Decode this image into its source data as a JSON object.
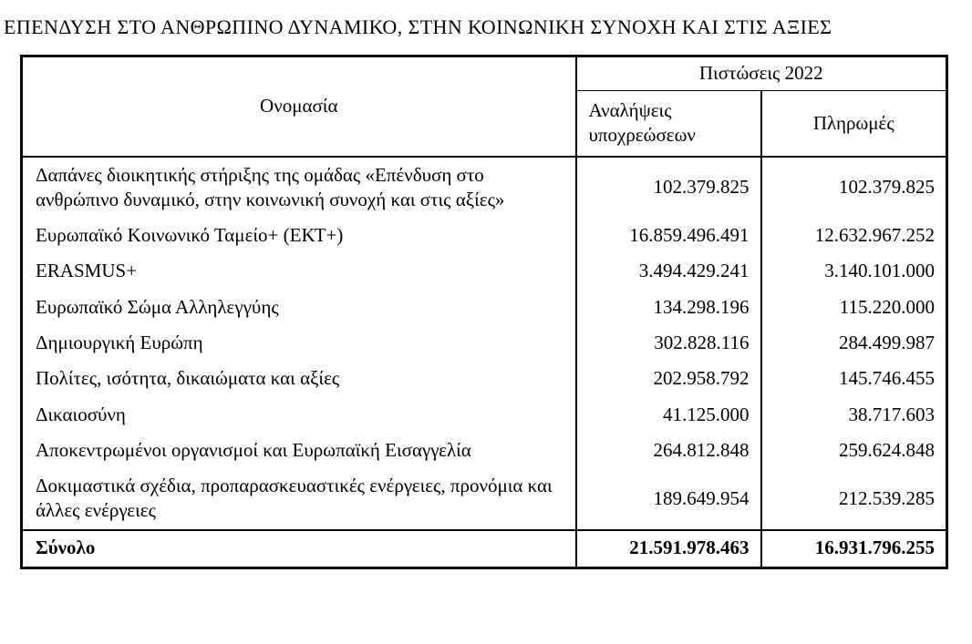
{
  "page": {
    "title": "ΕΠΕΝΔΥΣΗ ΣΤΟ ΑΝΘΡΩΠΙΝΟ ΔΥΝΑΜΙΚΟ, ΣΤΗΝ ΚΟΙΝΩΝΙΚΗ ΣΥΝΟΧΗ ΚΑΙ ΣΤΙΣ ΑΞΙΕΣ"
  },
  "table": {
    "headers": {
      "name": "Ονομασία",
      "credits_group": "Πιστώσεις 2022",
      "commitments": "Αναλήψεις υποχρεώσεων",
      "payments": "Πληρωμές"
    },
    "rows": [
      {
        "name": "Δαπάνες διοικητικής στήριξης της ομάδας «Επένδυση στο ανθρώπινο δυναμικό, στην κοινωνική συνοχή και στις αξίες»",
        "commitments": "102.379.825",
        "payments": "102.379.825"
      },
      {
        "name": "Ευρωπαϊκό Κοινωνικό Ταμείο+ (ΕΚΤ+)",
        "commitments": "16.859.496.491",
        "payments": "12.632.967.252"
      },
      {
        "name": "ERASMUS+",
        "commitments": "3.494.429.241",
        "payments": "3.140.101.000"
      },
      {
        "name": "Ευρωπαϊκό Σώμα Αλληλεγγύης",
        "commitments": "134.298.196",
        "payments": "115.220.000"
      },
      {
        "name": "Δημιουργική Ευρώπη",
        "commitments": "302.828.116",
        "payments": "284.499.987"
      },
      {
        "name": "Πολίτες, ισότητα, δικαιώματα και αξίες",
        "commitments": "202.958.792",
        "payments": "145.746.455"
      },
      {
        "name": "Δικαιοσύνη",
        "commitments": "41.125.000",
        "payments": "38.717.603"
      },
      {
        "name": "Αποκεντρωμένοι οργανισμοί και Ευρωπαϊκή Εισαγγελία",
        "commitments": "264.812.848",
        "payments": "259.624.848"
      },
      {
        "name": "Δοκιμαστικά σχέδια, προπαρασκευαστικές ενέργειες, προνόμια και άλλες ενέργειες",
        "commitments": "189.649.954",
        "payments": "212.539.285"
      }
    ],
    "total": {
      "label": "Σύνολο",
      "commitments": "21.591.978.463",
      "payments": "16.931.796.255"
    }
  },
  "colors": {
    "text": "#000000",
    "border": "#000000",
    "background": "#ffffff"
  }
}
